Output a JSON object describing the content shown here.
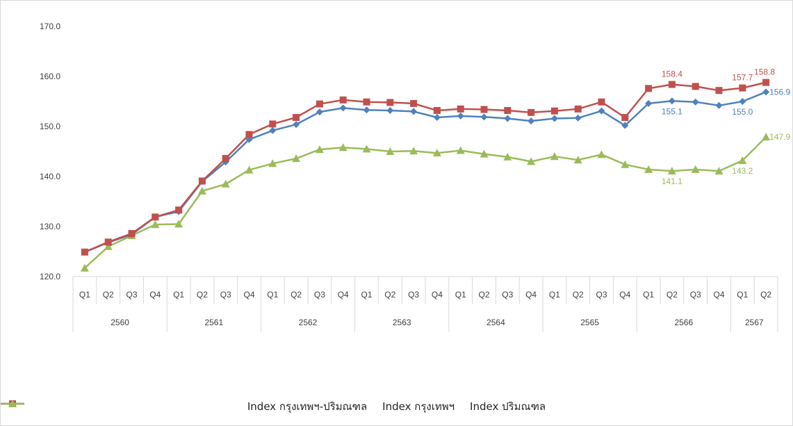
{
  "chart_data": {
    "type": "line",
    "title": "",
    "xlabel": "",
    "ylabel": "",
    "ylim": [
      120,
      170
    ],
    "y_ticks": [
      "120.0",
      "130.0",
      "140.0",
      "150.0",
      "160.0",
      "170.0"
    ],
    "grid": false,
    "legend_position": "bottom",
    "quarters": [
      "Q1",
      "Q2",
      "Q3",
      "Q4",
      "Q1",
      "Q2",
      "Q3",
      "Q4",
      "Q1",
      "Q2",
      "Q3",
      "Q4",
      "Q1",
      "Q2",
      "Q3",
      "Q4",
      "Q1",
      "Q2",
      "Q3",
      "Q4",
      "Q1",
      "Q2",
      "Q3",
      "Q4",
      "Q1",
      "Q2",
      "Q3",
      "Q4",
      "Q1",
      "Q2"
    ],
    "years": [
      {
        "label": "2560",
        "count": 4
      },
      {
        "label": "2561",
        "count": 4
      },
      {
        "label": "2562",
        "count": 4
      },
      {
        "label": "2563",
        "count": 4
      },
      {
        "label": "2564",
        "count": 4
      },
      {
        "label": "2565",
        "count": 4
      },
      {
        "label": "2566",
        "count": 4
      },
      {
        "label": "2567",
        "count": 2
      }
    ],
    "series": [
      {
        "name": "Index กรุงเทพฯ-ปริมณฑล",
        "color": "#4f81bd",
        "marker": "diamond",
        "values": [
          124.9,
          126.8,
          128.4,
          131.9,
          133.0,
          139.0,
          142.9,
          147.4,
          149.2,
          150.4,
          152.9,
          153.7,
          153.3,
          153.2,
          153.0,
          151.8,
          152.1,
          151.9,
          151.6,
          151.1,
          151.6,
          151.7,
          153.1,
          150.2,
          154.6,
          155.1,
          154.9,
          154.2,
          155.0,
          156.9
        ],
        "labels": [
          {
            "index": 25,
            "text": "155.1"
          },
          {
            "index": 28,
            "text": "155.0"
          },
          {
            "index": 29,
            "text": "156.9"
          }
        ]
      },
      {
        "name": "Index กรุงเทพฯ",
        "color": "#c0504d",
        "marker": "square",
        "values": [
          124.9,
          126.9,
          128.6,
          131.9,
          133.3,
          139.1,
          143.6,
          148.4,
          150.5,
          151.8,
          154.5,
          155.3,
          154.9,
          154.8,
          154.6,
          153.2,
          153.5,
          153.4,
          153.2,
          152.8,
          153.1,
          153.5,
          154.9,
          151.8,
          157.6,
          158.4,
          158.0,
          157.2,
          157.7,
          158.8
        ],
        "labels": [
          {
            "index": 25,
            "text": "158.4"
          },
          {
            "index": 28,
            "text": "157.7"
          },
          {
            "index": 29,
            "text": "158.8"
          }
        ]
      },
      {
        "name": "Index ปริมณฑล",
        "color": "#9bbb59",
        "marker": "triangle",
        "values": [
          121.7,
          126.0,
          128.2,
          130.4,
          130.5,
          137.1,
          138.5,
          141.3,
          142.6,
          143.6,
          145.4,
          145.8,
          145.5,
          145.0,
          145.1,
          144.7,
          145.2,
          144.5,
          143.9,
          143.0,
          144.0,
          143.3,
          144.4,
          142.4,
          141.4,
          141.1,
          141.4,
          141.1,
          143.2,
          147.9
        ],
        "labels": [
          {
            "index": 25,
            "text": "141.1"
          },
          {
            "index": 28,
            "text": "143.2"
          },
          {
            "index": 29,
            "text": "147.9"
          }
        ]
      }
    ]
  },
  "legend": {
    "items": [
      {
        "label": "Index กรุงเทพฯ-ปริมณฑล",
        "color": "#4f81bd",
        "marker": "diamond"
      },
      {
        "label": "Index กรุงเทพฯ",
        "color": "#c0504d",
        "marker": "square"
      },
      {
        "label": "Index ปริมณฑล",
        "color": "#9bbb59",
        "marker": "triangle"
      }
    ]
  }
}
